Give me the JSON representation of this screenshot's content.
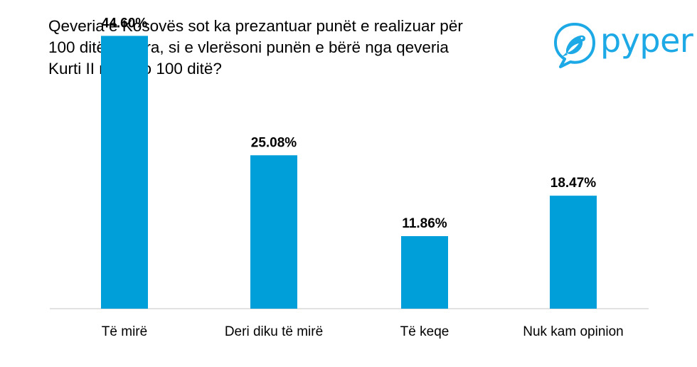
{
  "chart_data": {
    "type": "bar",
    "title_lines": [
      "Qeveria e Kosovës sot ka prezantuar punët e realizuar për",
      "100 ditët e para, si e vlerësoni punën e bërë nga qeveria",
      "Kurti II në këto 100 ditë?"
    ],
    "categories": [
      "Të mirë",
      "Deri diku të mirë",
      "Të keqe",
      "Nuk kam opinion"
    ],
    "values": [
      44.6,
      25.08,
      11.86,
      18.47
    ],
    "value_labels": [
      "44.60%",
      "25.08%",
      "11.86%",
      "18.47%"
    ],
    "ylim": [
      0,
      50
    ],
    "grid": false,
    "legend": "none",
    "bar_color": "#009fda",
    "axis_color": "#d9d9d9"
  },
  "brand": {
    "name": "pyper",
    "color": "#1ca9e6",
    "icon": "bird-logo-icon"
  }
}
